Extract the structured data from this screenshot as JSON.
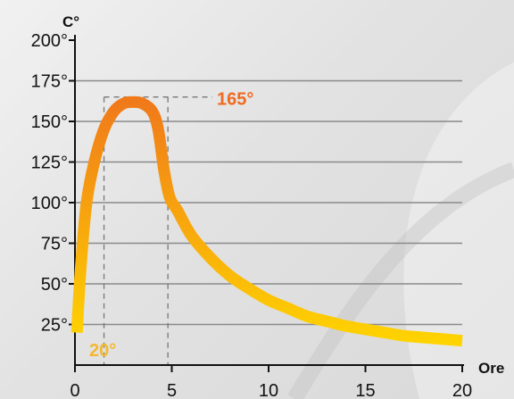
{
  "chart_data": {
    "type": "line",
    "title": "",
    "xlabel": "Ore",
    "ylabel": "C°",
    "xlim": [
      0,
      20
    ],
    "ylim": [
      0,
      200
    ],
    "x_ticks": [
      {
        "value": 0,
        "label": "0"
      },
      {
        "value": 5,
        "label": "5"
      },
      {
        "value": 10,
        "label": "10"
      },
      {
        "value": 15,
        "label": "15"
      },
      {
        "value": 20,
        "label": "20"
      }
    ],
    "y_ticks": [
      {
        "value": 25,
        "label": "25°"
      },
      {
        "value": 50,
        "label": "50°"
      },
      {
        "value": 75,
        "label": "75°"
      },
      {
        "value": 100,
        "label": "100°"
      },
      {
        "value": 125,
        "label": "125°"
      },
      {
        "value": 150,
        "label": "150°"
      },
      {
        "value": 175,
        "label": "175°"
      },
      {
        "value": 200,
        "label": "200°"
      }
    ],
    "grid": true,
    "series": [
      {
        "x": [
          0.1,
          0.3,
          0.6,
          1.0,
          1.5,
          2.0,
          2.5,
          3.0,
          3.5,
          4.0,
          4.3,
          4.6,
          4.9,
          5.3,
          6,
          7,
          8,
          9,
          10,
          11,
          12,
          13,
          14,
          15,
          16,
          17,
          18,
          19,
          20
        ],
        "y": [
          20,
          60,
          100,
          125,
          145,
          156,
          161,
          162,
          161,
          156,
          145,
          120,
          103,
          95,
          80,
          66,
          55,
          47,
          40,
          35,
          30,
          27,
          24,
          22,
          20,
          18,
          17,
          16,
          15
        ]
      }
    ],
    "annotations": [
      {
        "label": "165°",
        "value": 165,
        "kind": "max"
      },
      {
        "label": "20°",
        "value": 20,
        "kind": "start"
      }
    ],
    "reference_x": [
      1.5,
      4.8
    ],
    "colors": {
      "peak": "#f07a1a",
      "base": "#ffd400",
      "start_label": "#f3b830",
      "peak_label": "#f06a20"
    }
  }
}
